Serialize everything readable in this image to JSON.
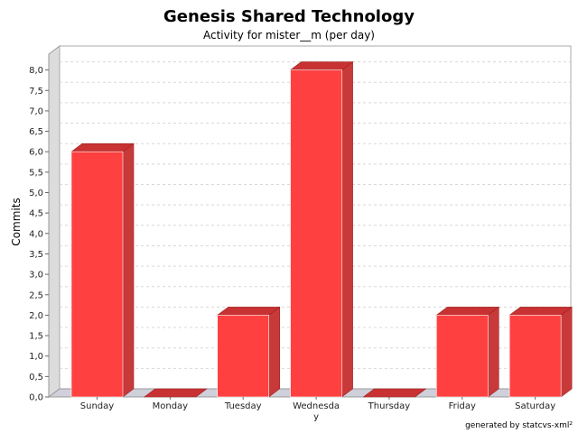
{
  "chart_data": {
    "type": "bar",
    "title": "Genesis Shared Technology",
    "subtitle": "Activity for mister__m (per day)",
    "xlabel": "",
    "ylabel": "Commits",
    "categories": [
      "Sunday",
      "Monday",
      "Tuesday",
      "Wednesday",
      "Thursday",
      "Friday",
      "Saturday"
    ],
    "category_labels": [
      [
        "Sunday"
      ],
      [
        "Monday"
      ],
      [
        "Tuesday"
      ],
      [
        "Wednesda",
        "y"
      ],
      [
        "Thursday"
      ],
      [
        "Friday"
      ],
      [
        "Saturday"
      ]
    ],
    "values": [
      6,
      0,
      2,
      8,
      0,
      2,
      2
    ],
    "ylim": [
      0,
      8.2
    ],
    "y_tick_step": 0.5,
    "y_tick_labels": [
      "0,0",
      "0,5",
      "1,0",
      "1,5",
      "2,0",
      "2,5",
      "3,0",
      "3,5",
      "4,0",
      "4,5",
      "5,0",
      "5,5",
      "6,0",
      "6,5",
      "7,0",
      "7,5",
      "8,0"
    ],
    "grid": true,
    "style": "3d",
    "colors": {
      "bar_front": "#ff4040",
      "bar_top": "#c83232",
      "bar_side": "#c83a3a",
      "bar_edge": "#a02020",
      "wall": "#d8d8d8",
      "floor": "#d0d0dc",
      "grid": "#d8d8d8"
    }
  },
  "footer": "generated by statcvs-xml²"
}
